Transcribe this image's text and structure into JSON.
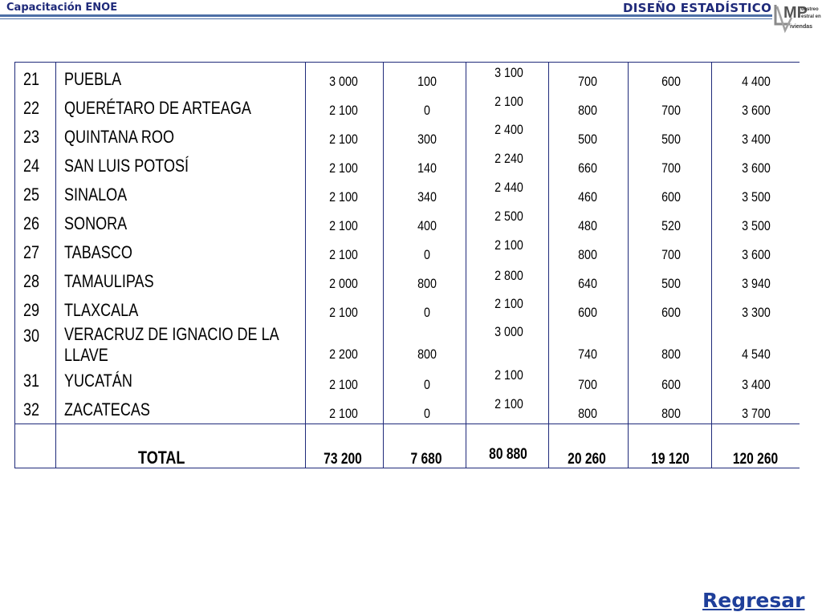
{
  "header": {
    "left_title": "Capacitación ENOE",
    "right_title": "DISEÑO ESTADÍSTICO",
    "logo": {
      "icon": "muestreo-viviendas-logo",
      "text_main": "MP",
      "text_small1": "uestreo",
      "text_small2": "estral en",
      "text_small3": "iviendas"
    }
  },
  "rows": [
    {
      "num": "21",
      "name": "PUEBLA",
      "c1": "3 000",
      "c2": "100",
      "c3": "3 100",
      "c4": "700",
      "c5": "600",
      "c6": "4 400"
    },
    {
      "num": "22",
      "name": "QUERÉTARO DE ARTEAGA",
      "c1": "2 100",
      "c2": "0",
      "c3": "2 100",
      "c4": "800",
      "c5": "700",
      "c6": "3 600"
    },
    {
      "num": "23",
      "name": "QUINTANA ROO",
      "c1": "2 100",
      "c2": "300",
      "c3": "2 400",
      "c4": "500",
      "c5": "500",
      "c6": "3 400"
    },
    {
      "num": "24",
      "name": "SAN LUIS POTOSÍ",
      "c1": "2 100",
      "c2": "140",
      "c3": "2 240",
      "c4": "660",
      "c5": "700",
      "c6": "3 600"
    },
    {
      "num": "25",
      "name": "SINALOA",
      "c1": "2 100",
      "c2": "340",
      "c3": "2 440",
      "c4": "460",
      "c5": "600",
      "c6": "3 500"
    },
    {
      "num": "26",
      "name": "SONORA",
      "c1": "2 100",
      "c2": "400",
      "c3": "2 500",
      "c4": "480",
      "c5": "520",
      "c6": "3 500"
    },
    {
      "num": "27",
      "name": "TABASCO",
      "c1": "2 100",
      "c2": "0",
      "c3": "2 100",
      "c4": "800",
      "c5": "700",
      "c6": "3 600"
    },
    {
      "num": "28",
      "name": "TAMAULIPAS",
      "c1": "2 000",
      "c2": "800",
      "c3": "2 800",
      "c4": "640",
      "c5": "500",
      "c6": "3 940"
    },
    {
      "num": "29",
      "name": "TLAXCALA",
      "c1": "2 100",
      "c2": "0",
      "c3": "2 100",
      "c4": "600",
      "c5": "600",
      "c6": "3 300"
    },
    {
      "num": "30",
      "name_line1": "VERACRUZ DE IGNACIO DE LA",
      "name_line2": "LLAVE",
      "c1": "2 200",
      "c2": "800",
      "c3": "3 000",
      "c4": "740",
      "c5": "800",
      "c6": "4 540"
    },
    {
      "num": "31",
      "name": "YUCATÁN",
      "c1": "2 100",
      "c2": "0",
      "c3": "2 100",
      "c4": "700",
      "c5": "600",
      "c6": "3 400"
    },
    {
      "num": "32",
      "name": "ZACATECAS",
      "c1": "2 100",
      "c2": "0",
      "c3": "2 100",
      "c4": "800",
      "c5": "800",
      "c6": "3 700"
    }
  ],
  "total": {
    "label": "TOTAL",
    "c1": "73 200",
    "c2": "7 680",
    "c3": "80 880",
    "c4": "20 260",
    "c5": "19 120",
    "c6": "120 260"
  },
  "footer": {
    "back_link": "Regresar"
  }
}
